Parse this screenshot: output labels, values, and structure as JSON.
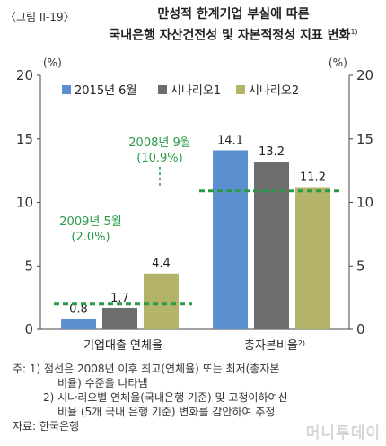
{
  "figure_number": "〈그림 II-19〉",
  "title_line1": "만성적 한계기업 부실에 따른",
  "title_line2": "국내은행 자산건전성 및 자본적정성 지표 변화",
  "title_sup": "1)",
  "chart_data": {
    "type": "bar",
    "categories": [
      "기업대출 연체율",
      "총자본비율"
    ],
    "category_sup": [
      "",
      "2)"
    ],
    "series": [
      {
        "name": "2015년 6월",
        "values": [
          0.8,
          14.1
        ],
        "color": "#5b8fcf"
      },
      {
        "name": "시나리오1",
        "values": [
          1.7,
          13.2
        ],
        "color": "#6d6d6d"
      },
      {
        "name": "시나리오2",
        "values": [
          4.4,
          11.2
        ],
        "color": "#b3b36a"
      }
    ],
    "value_labels": [
      [
        "0.8",
        "1.7",
        "4.4"
      ],
      [
        "14.1",
        "13.2",
        "11.2"
      ]
    ],
    "ylim": [
      0,
      20
    ],
    "yticks": [
      "0",
      "5",
      "10",
      "15",
      "20"
    ],
    "left_unit": "(%)",
    "right_unit": "(%)",
    "reference_lines": [
      {
        "category_index": 0,
        "value": 2.0,
        "label1": "2009년 5월",
        "label2": "(2.0%)"
      },
      {
        "category_index": 1,
        "value": 10.9,
        "label1": "2008년 9월",
        "label2": "(10.9%)"
      }
    ],
    "reference_color": "#2a9a47",
    "legend_position": "top"
  },
  "notes": [
    "주: 1) 점선은 2008년 이후 최고(연체율) 또는 최저(총자본",
    "비율) 수준을 나타냄",
    "2) 시나리오별 연체율(국내은행 기준) 및 고정이하여신",
    "비율 (5개 국내 은행 기준) 변화를 감안하여 추정",
    "자료: 한국은행"
  ],
  "watermark": "머니투데이"
}
